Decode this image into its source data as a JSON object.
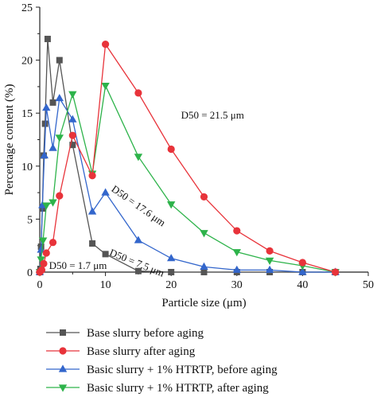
{
  "chart_data": {
    "type": "line",
    "xlabel": "Particle size (μm)",
    "ylabel": "Percentage content (%)",
    "xlim": [
      0,
      50
    ],
    "ylim": [
      0,
      25
    ],
    "xticks": [
      "0",
      "10",
      "20",
      "30",
      "40",
      "50"
    ],
    "yticks": [
      "0",
      "5",
      "10",
      "15",
      "20",
      "25"
    ],
    "grid": false,
    "legend_placement": "bottom",
    "series": [
      {
        "name": "Base slurry before aging",
        "color": "#555555",
        "marker": "square",
        "points": [
          [
            0,
            0
          ],
          [
            0.1,
            0.3
          ],
          [
            0.2,
            2.4
          ],
          [
            0.4,
            6
          ],
          [
            0.6,
            11
          ],
          [
            0.8,
            14
          ],
          [
            1.2,
            22
          ],
          [
            2,
            16
          ],
          [
            3,
            20
          ],
          [
            5,
            12
          ],
          [
            8,
            2.7
          ],
          [
            10,
            1.7
          ],
          [
            15,
            0.1
          ],
          [
            20,
            0
          ],
          [
            25,
            0
          ],
          [
            30,
            0
          ],
          [
            35,
            0
          ],
          [
            40,
            0
          ],
          [
            45,
            0
          ]
        ]
      },
      {
        "name": "Base slurry after aging",
        "color": "#e8333a",
        "marker": "circle",
        "points": [
          [
            0,
            0
          ],
          [
            0.3,
            0.2
          ],
          [
            0.6,
            0.8
          ],
          [
            1,
            1.8
          ],
          [
            2,
            2.8
          ],
          [
            3,
            7.2
          ],
          [
            5,
            12.9
          ],
          [
            8,
            9.1
          ],
          [
            10,
            21.5
          ],
          [
            15,
            16.9
          ],
          [
            20,
            11.6
          ],
          [
            25,
            7.1
          ],
          [
            30,
            3.9
          ],
          [
            35,
            2
          ],
          [
            40,
            0.9
          ],
          [
            45,
            0
          ]
        ]
      },
      {
        "name": "Basic slurry + 1% HTRTP, before aging",
        "color": "#3366cc",
        "marker": "triangle-up",
        "points": [
          [
            0,
            0
          ],
          [
            0.2,
            2.1
          ],
          [
            0.4,
            6.3
          ],
          [
            0.7,
            11
          ],
          [
            1,
            15.5
          ],
          [
            2,
            11.7
          ],
          [
            3,
            16.4
          ],
          [
            5,
            14.4
          ],
          [
            8,
            5.7
          ],
          [
            10,
            7.5
          ],
          [
            15,
            3
          ],
          [
            20,
            1.3
          ],
          [
            25,
            0.5
          ],
          [
            30,
            0.2
          ],
          [
            35,
            0.2
          ],
          [
            40,
            0
          ],
          [
            45,
            0
          ]
        ]
      },
      {
        "name": "Basic slurry + 1% HTRTP, after aging",
        "color": "#2db34a",
        "marker": "triangle-down",
        "points": [
          [
            0,
            0
          ],
          [
            0.2,
            1.2
          ],
          [
            0.5,
            3
          ],
          [
            1,
            6.3
          ],
          [
            2,
            6.6
          ],
          [
            3,
            12.7
          ],
          [
            5,
            16.8
          ],
          [
            8,
            9.3
          ],
          [
            10,
            17.6
          ],
          [
            15,
            10.9
          ],
          [
            20,
            6.4
          ],
          [
            25,
            3.7
          ],
          [
            30,
            1.9
          ],
          [
            35,
            1.1
          ],
          [
            40,
            0.6
          ],
          [
            45,
            0
          ]
        ]
      }
    ],
    "annotations": [
      {
        "text": "D50 = 21.5 μm",
        "x": 21.5,
        "y": 14.5,
        "rotate": 0
      },
      {
        "text": "D50 = 17.6 μm",
        "x": 10.8,
        "y": 7.7,
        "rotate": 35
      },
      {
        "text": "D50 = 7.5 μm",
        "x": 10.5,
        "y": 1.6,
        "rotate": 22
      },
      {
        "text": "D50 = 1.7 μm",
        "x": 1.4,
        "y": 0.3,
        "rotate": 0
      }
    ]
  }
}
